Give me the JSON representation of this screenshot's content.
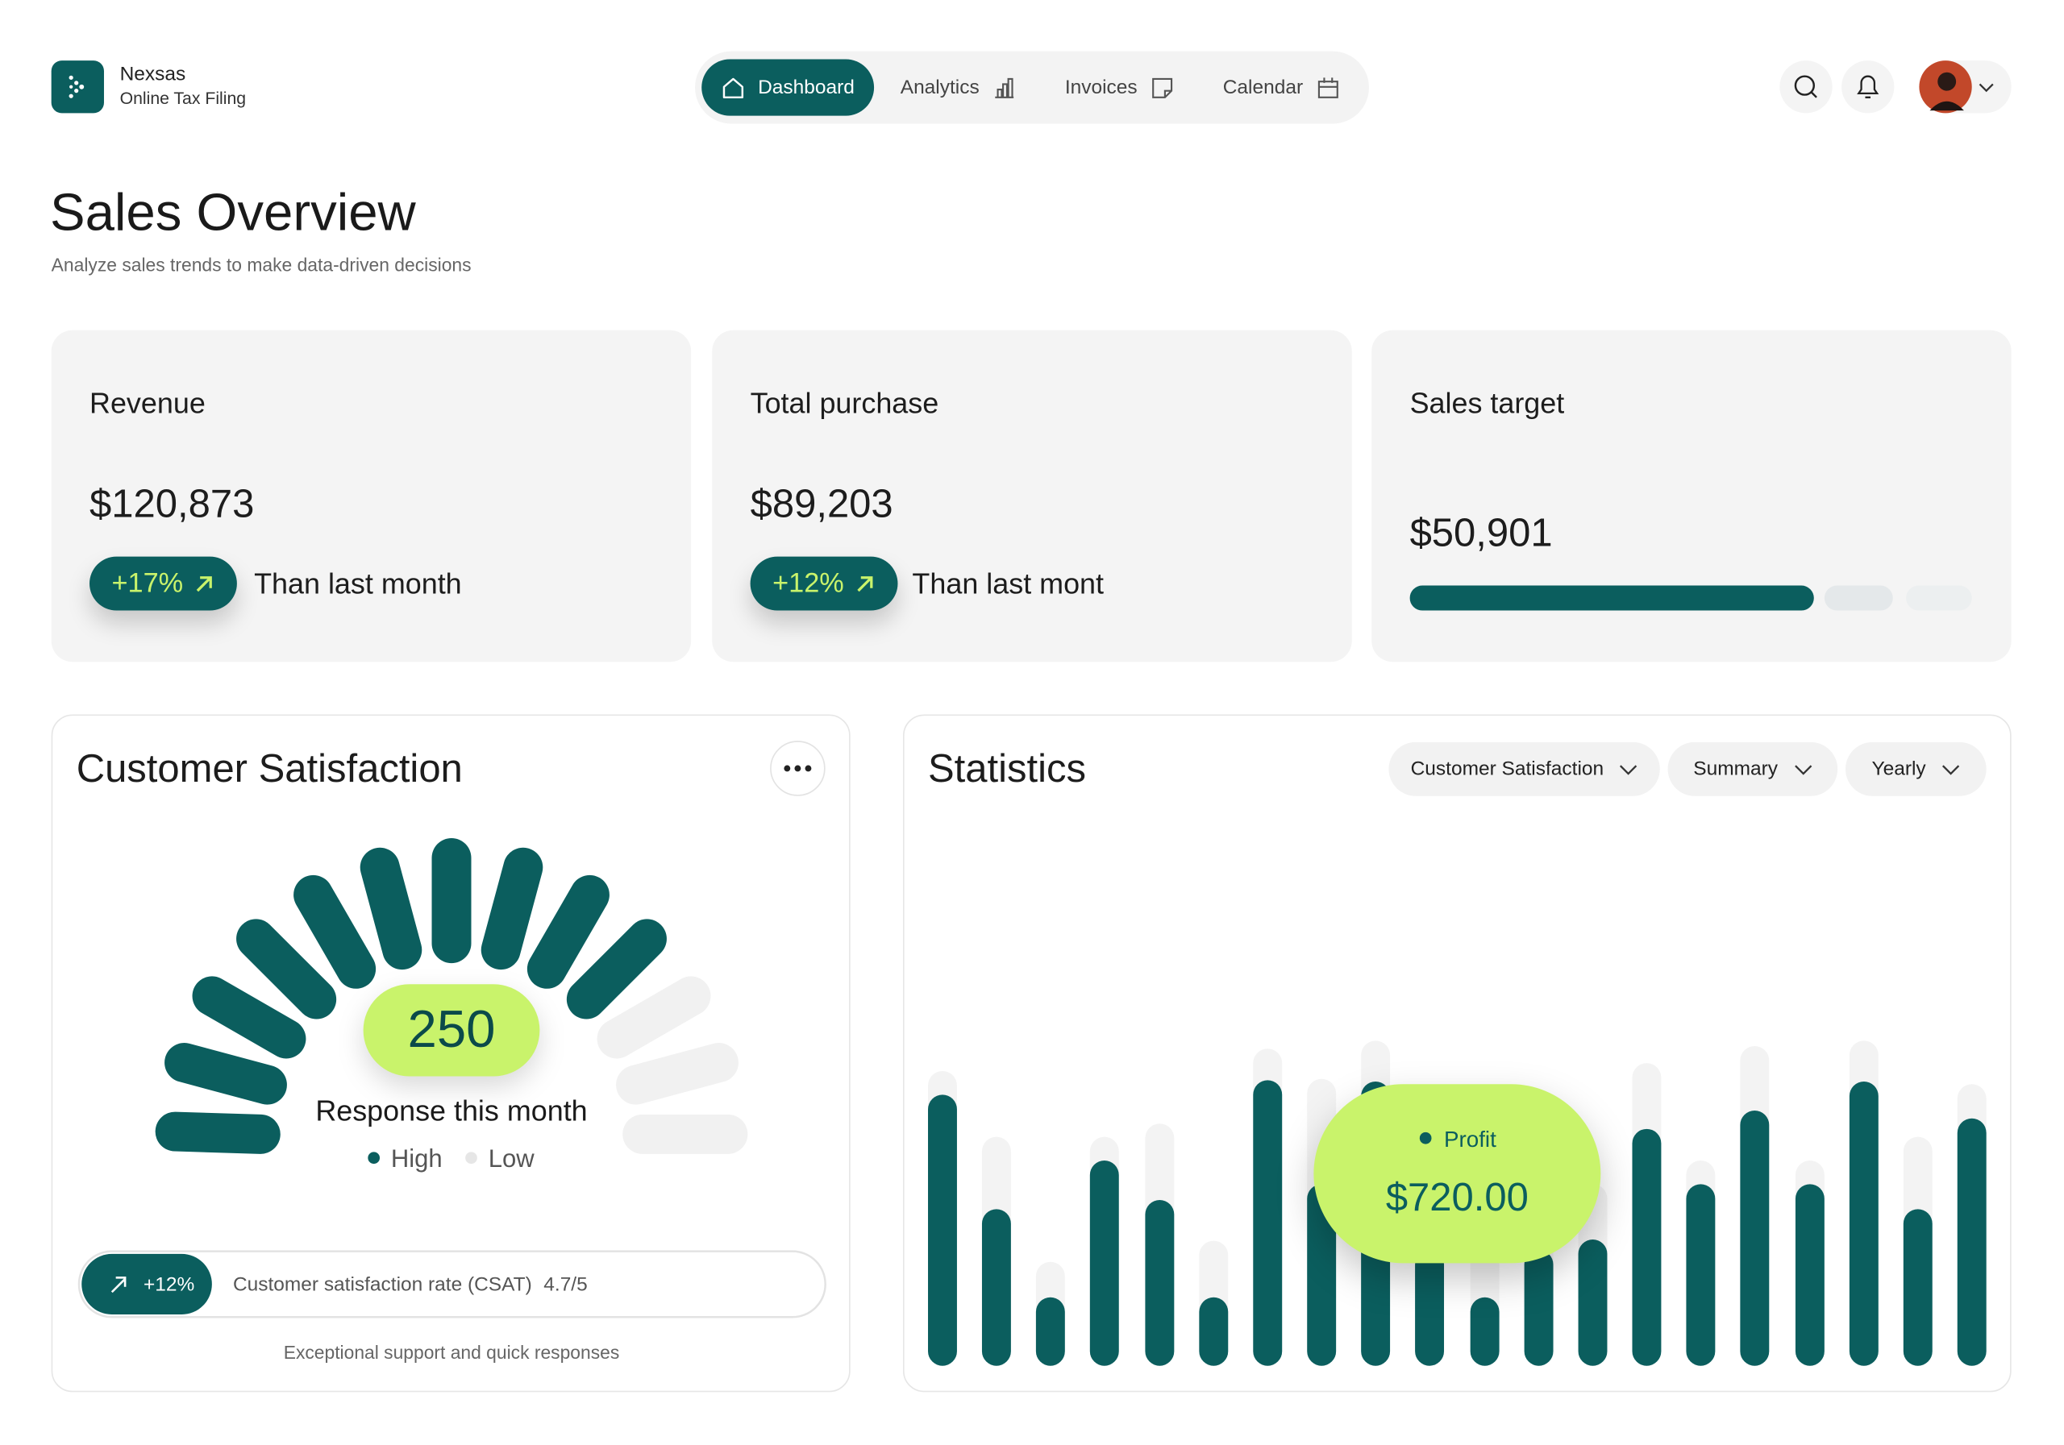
{
  "header": {
    "brand": "Nexsas",
    "tagline": "Online Tax Filing",
    "nav": [
      "Dashboard",
      "Analytics",
      "Invoices",
      "Calendar"
    ]
  },
  "page": {
    "title": "Sales Overview",
    "subtitle": "Analyze sales trends to make data-driven decisions"
  },
  "cards": [
    {
      "label": "Revenue",
      "value": "$120,873",
      "change": "+17%",
      "note": "Than last month"
    },
    {
      "label": "Total purchase",
      "value": "$89,203",
      "change": "+12%",
      "note": "Than last mont"
    },
    {
      "label": "Sales target",
      "value": "$50,901"
    }
  ],
  "customer_satisfaction": {
    "title": "Customer Satisfaction",
    "count": 250,
    "count_label": "Response this month",
    "legend": [
      "High",
      "Low"
    ],
    "change": "+12%",
    "rate_label": "Customer satisfaction rate (CSAT)",
    "rate": "4.7/5",
    "footnote": "Exceptional support and quick responses"
  },
  "statistics": {
    "title": "Statistics",
    "filters": [
      "Customer Satisfaction",
      "Summary",
      "Yearly"
    ],
    "tooltip": {
      "label": "Profit",
      "value": "$720.00"
    }
  }
}
